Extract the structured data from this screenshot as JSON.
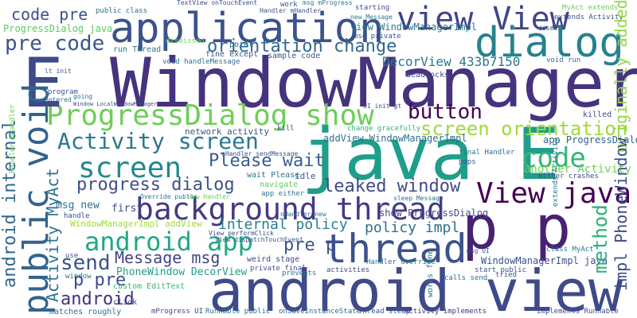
{
  "words": [
    {
      "id": "windowmanager",
      "text": "WindowManager",
      "color": "#46337e"
    },
    {
      "id": "java-e",
      "text": "java E",
      "color": "#1f9e89"
    },
    {
      "id": "android-view",
      "text": "android view",
      "color": "#3e4a89"
    },
    {
      "id": "application",
      "text": "application",
      "color": "#3b528b"
    },
    {
      "id": "dialog",
      "text": "dialog",
      "color": "#26828e"
    },
    {
      "id": "view-view",
      "text": "view View",
      "color": "#414487"
    },
    {
      "id": "p-p",
      "text": "p p",
      "color": "#482173"
    },
    {
      "id": "background-thread",
      "text": "background thread",
      "color": "#443983"
    },
    {
      "id": "thread",
      "text": "thread",
      "color": "#3b528b"
    },
    {
      "id": "progressdialog-show",
      "text": "ProgressDialog show",
      "color": "#6ece58"
    },
    {
      "id": "view-java",
      "text": "View java",
      "color": "#440154"
    },
    {
      "id": "public-void",
      "text": "public void",
      "color": "#33638d"
    },
    {
      "id": "e-big",
      "text": "E",
      "color": "#3e4a89"
    },
    {
      "id": "android-app",
      "text": "android app",
      "color": "#22a884"
    },
    {
      "id": "activity-screen",
      "text": "Activity screen",
      "color": "#2a788e"
    },
    {
      "id": "screen",
      "text": "screen",
      "color": "#23888e"
    },
    {
      "id": "screen-orientation",
      "text": "screen orientation",
      "color": "#a0da39"
    },
    {
      "id": "orientation-change",
      "text": "orientation change",
      "color": "#31688e"
    },
    {
      "id": "code",
      "text": "code",
      "color": "#35b779"
    },
    {
      "id": "button",
      "text": "button",
      "color": "#440154"
    },
    {
      "id": "please-wait",
      "text": "Please wait",
      "color": "#355f8d"
    },
    {
      "id": "progress-dialog",
      "text": "progress dialog",
      "color": "#3b528b"
    },
    {
      "id": "leaked-window",
      "text": "leaked window",
      "color": "#3e4a89"
    },
    {
      "id": "send",
      "text": "send",
      "color": "#3b528b"
    },
    {
      "id": "message-msg",
      "text": "Message msg",
      "color": "#414487"
    },
    {
      "id": "pre-code",
      "text": "pre code",
      "color": "#39568c"
    },
    {
      "id": "code-pre",
      "text": "code pre",
      "color": "#3b528b"
    },
    {
      "id": "decorview",
      "text": "DecorView 433b7150",
      "color": "#2a788e"
    },
    {
      "id": "android-internal",
      "text": "android internal",
      "color": "#31688e"
    },
    {
      "id": "activity-myact",
      "text": "Activity MyAct",
      "color": "#2c728e"
    },
    {
      "id": "method",
      "text": "method",
      "color": "#2db27d"
    },
    {
      "id": "originally-added",
      "text": "originally added",
      "color": "#90d743"
    },
    {
      "id": "pre-p",
      "text": "pre p",
      "color": "#3b528b"
    },
    {
      "id": "p-pre",
      "text": "p pre",
      "color": "#3e4a89"
    },
    {
      "id": "android-small",
      "text": "android",
      "color": "#46327e"
    },
    {
      "id": "policy-impl",
      "text": "policy impl",
      "color": "#2e6e8e"
    },
    {
      "id": "internal-policy",
      "text": "internal policy",
      "color": "#277f8e"
    },
    {
      "id": "progressdialog-java",
      "text": "ProgressDialog java",
      "color": "#5ec962"
    },
    {
      "id": "addview-wmimpl",
      "text": "addView WindowManagerImpl",
      "color": "#2c728e"
    },
    {
      "id": "windowmanagerimpl-java",
      "text": "WindowManagerImpl java",
      "color": "#3b528b"
    },
    {
      "id": "phonewindow-decorview",
      "text": "PhoneWindow DecorView",
      "color": "#1f9e89"
    },
    {
      "id": "impl-phonewindow",
      "text": "impl PhoneWindow",
      "color": "#3e4a89"
    },
    {
      "id": "app-progressdialog",
      "text": "app ProgressDialog",
      "color": "#33638d"
    },
    {
      "id": "show-progressdialog",
      "text": "show ProgressDialog",
      "color": "#3e4a89"
    },
    {
      "id": "another-activity",
      "text": "another Activity",
      "color": "#6ece58"
    },
    {
      "id": "wmimpl-addview",
      "text": "WindowManagerImpl addView",
      "color": "#a0da39"
    },
    {
      "id": "view-windowmanagerimpl",
      "text": "view WindowManagerImpl",
      "color": "#2a788e"
    },
    {
      "id": "network-activity",
      "text": "network activity",
      "color": "#3b528b"
    },
    {
      "id": "msg-new",
      "text": "msg new",
      "color": "#2c728e"
    },
    {
      "id": "first",
      "text": "first",
      "color": "#3e4a89"
    },
    {
      "id": "sample-code",
      "text": "sample code",
      "color": "#3b528b"
    },
    {
      "id": "run-thread",
      "text": "run Thread",
      "color": "#2a788e"
    },
    {
      "id": "void-handlemessage",
      "text": "void handleMessage",
      "color": "#2c728e"
    },
    {
      "id": "fine-except",
      "text": "fine except",
      "color": "#3b528b"
    },
    {
      "id": "dismissed",
      "text": "dismissed",
      "color": "#6ece58"
    },
    {
      "id": "point",
      "text": "point",
      "color": "#2e6e8e"
    },
    {
      "id": "msg-private",
      "text": "msg private",
      "color": "#3b528b"
    },
    {
      "id": "deadlocks",
      "text": "deadlocks",
      "color": "#3e4a89"
    },
    {
      "id": "void-run",
      "text": "void run",
      "color": "#2c728e"
    },
    {
      "id": "custom-edittext",
      "text": "custom EditText",
      "color": "#35b779"
    },
    {
      "id": "weird-stage",
      "text": "weird stage",
      "color": "#3e4a89"
    },
    {
      "id": "private-final",
      "text": "private final",
      "color": "#3b528b"
    },
    {
      "id": "runnable-public",
      "text": "Runnable public",
      "color": "#2c728e"
    },
    {
      "id": "thread-sleep",
      "text": "Thread sleep",
      "color": "#3b528b"
    },
    {
      "id": "activity-implements",
      "text": "Activity implements",
      "color": "#46337e"
    },
    {
      "id": "implements-runnable",
      "text": "implements Runnable",
      "color": "#3e4a89"
    },
    {
      "id": "oninstancestate",
      "text": "onSaveInstanceState",
      "color": "#31688e"
    },
    {
      "id": "mprogress-ui",
      "text": "mProgress UI",
      "color": "#3e4a89"
    },
    {
      "id": "matches-roughly",
      "text": "matches roughly",
      "color": "#2c728e"
    },
    {
      "id": "click",
      "text": "click",
      "color": "#3b528b"
    },
    {
      "id": "calls-send",
      "text": "calls send",
      "color": "#2e6e8e"
    },
    {
      "id": "start-public",
      "text": "start public",
      "color": "#3b528b"
    },
    {
      "id": "handler-override",
      "text": "Handler Override",
      "color": "#2a788e"
    },
    {
      "id": "activities",
      "text": "activities",
      "color": "#3e4a89"
    },
    {
      "id": "prevents",
      "text": "prevents",
      "color": "#2c728e"
    },
    {
      "id": "change-gracefully",
      "text": "change gracefully",
      "color": "#2db27d"
    },
    {
      "id": "idle",
      "text": "idle",
      "color": "#3b528b"
    },
    {
      "id": "wait-please",
      "text": "wait Please",
      "color": "#2c728e"
    },
    {
      "id": "navigate",
      "text": "navigate",
      "color": "#5ec962"
    },
    {
      "id": "app-either",
      "text": "app either",
      "color": "#2a788e"
    },
    {
      "id": "killed",
      "text": "killed",
      "color": "#3e4a89"
    },
    {
      "id": "kill",
      "text": "kill",
      "color": "#3b528b"
    },
    {
      "id": "either-crashes",
      "text": "either crashes",
      "color": "#3e4a89"
    },
    {
      "id": "pops",
      "text": "pops",
      "color": "#3b528b"
    },
    {
      "id": "final-handler",
      "text": "final Handler",
      "color": "#2c728e"
    },
    {
      "id": "class-myact",
      "text": "class MyAct",
      "color": "#2a788e"
    },
    {
      "id": "extends-activity",
      "text": "extends Activity",
      "color": "#3b528b"
    },
    {
      "id": "myact-extends",
      "text": "MyAct extends",
      "color": "#6ece58"
    },
    {
      "id": "public-class",
      "text": "public class",
      "color": "#2e6e8e"
    },
    {
      "id": "textview-ontouch",
      "text": "TextView onTouchEvent",
      "color": "#3e4a89"
    },
    {
      "id": "handler-mhandler",
      "text": "Handler mHandler",
      "color": "#3b528b"
    },
    {
      "id": "msg-mprogress",
      "text": "msg mProgress",
      "color": "#2c728e"
    },
    {
      "id": "starting",
      "text": "starting",
      "color": "#3e4a89"
    },
    {
      "id": "new-message",
      "text": "new Message",
      "color": "#2a788e"
    },
    {
      "id": "work",
      "text": "work",
      "color": "#3b528b"
    },
    {
      "id": "dismiss",
      "text": "dismiss",
      "color": "#2e6e8e"
    },
    {
      "id": "program",
      "text": "program",
      "color": "#3b528b"
    },
    {
      "id": "going",
      "text": "going",
      "color": "#2c728e"
    },
    {
      "id": "window-localwm",
      "text": "Window LocalWindowManager",
      "color": "#3e4a89"
    },
    {
      "id": "lt-init",
      "text": "lt init",
      "color": "#3b528b"
    },
    {
      "id": "entered",
      "text": "entered",
      "color": "#2c728e"
    },
    {
      "id": "use",
      "text": "use",
      "color": "#3b528b"
    },
    {
      "id": "window",
      "text": "window",
      "color": "#2c728e"
    },
    {
      "id": "handle",
      "text": "handle",
      "color": "#3e4a89"
    },
    {
      "id": "new-handler",
      "text": "new Handler",
      "color": "#6ece58"
    },
    {
      "id": "override-public",
      "text": "Override public",
      "color": "#2a788e"
    },
    {
      "id": "nhandler-sendmessage",
      "text": "nHandler sendMessage",
      "color": "#3b528b"
    },
    {
      "id": "sleep-message",
      "text": "sleep Message",
      "color": "#2c728e"
    },
    {
      "id": "view-performclick",
      "text": "View performClick",
      "color": "#3e4a89"
    },
    {
      "id": "view-dispatchtouch",
      "text": "View dispatchTouchEvent",
      "color": "#3b528b"
    },
    {
      "id": "nhandler-new",
      "text": "nHandler new",
      "color": "#2c728e"
    },
    {
      "id": "ui-init-gt",
      "text": "UI init gt",
      "color": "#3e4a89"
    },
    {
      "id": "msg-ui",
      "text": "msg UI",
      "color": "#3b528b"
    },
    {
      "id": "works-fine",
      "text": "works fine",
      "color": "#2c728e"
    },
    {
      "id": "tried",
      "text": "tried",
      "color": "#3b528b"
    }
  ]
}
